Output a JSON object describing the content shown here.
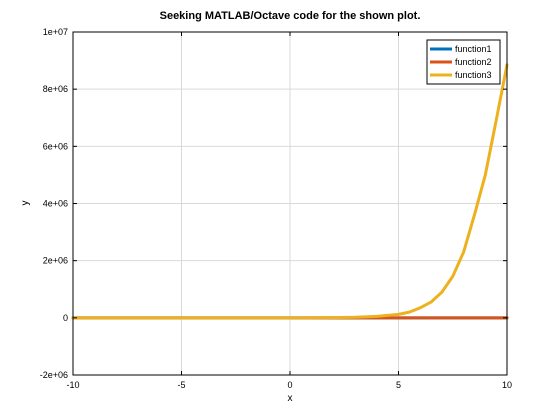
{
  "chart_data": {
    "type": "line",
    "title": "Seeking MATLAB/Octave code for the shown plot.",
    "xlabel": "x",
    "ylabel": "y",
    "xlim": [
      -10,
      10
    ],
    "ylim": [
      -2000000,
      10000000
    ],
    "x_ticks": [
      -10,
      -5,
      0,
      5,
      10
    ],
    "x_tick_labels": [
      "-10",
      "-5",
      "0",
      "5",
      "10"
    ],
    "y_ticks": [
      -2000000,
      0,
      2000000,
      4000000,
      6000000,
      8000000,
      10000000
    ],
    "y_tick_labels": [
      "-2e+06",
      "0",
      "2e+06",
      "4e+06",
      "6e+06",
      "8e+06",
      "1e+07"
    ],
    "grid": true,
    "legend_position": "top-right",
    "x": [
      -10,
      -9,
      -8,
      -7,
      -6,
      -5,
      -4,
      -3,
      -2,
      -1,
      0,
      1,
      2,
      3,
      4,
      5,
      5.5,
      6,
      6.5,
      7,
      7.5,
      8,
      8.5,
      9,
      9.5,
      10
    ],
    "series": [
      {
        "name": "function1",
        "color": "#0072bd",
        "values": [
          0,
          0,
          0,
          0,
          0,
          0,
          0,
          0,
          0,
          0,
          0,
          0,
          0,
          0,
          0,
          0,
          0,
          0,
          0,
          0,
          0,
          0,
          0,
          0,
          0,
          0
        ]
      },
      {
        "name": "function2",
        "color": "#d95319",
        "values": [
          0,
          0,
          0,
          0,
          0,
          0,
          0,
          0,
          0,
          0,
          0,
          0,
          0,
          0,
          0,
          0,
          0,
          0,
          0,
          0,
          0,
          0,
          0,
          0,
          0,
          0
        ]
      },
      {
        "name": "function3",
        "color": "#edb120",
        "values": [
          0,
          0,
          0,
          0,
          0,
          0,
          0,
          0,
          0,
          0,
          0,
          3000,
          8000,
          20000,
          50000,
          120000,
          200000,
          350000,
          550000,
          900000,
          1450000,
          2300000,
          3600000,
          5000000,
          6900000,
          8850000
        ]
      }
    ]
  }
}
